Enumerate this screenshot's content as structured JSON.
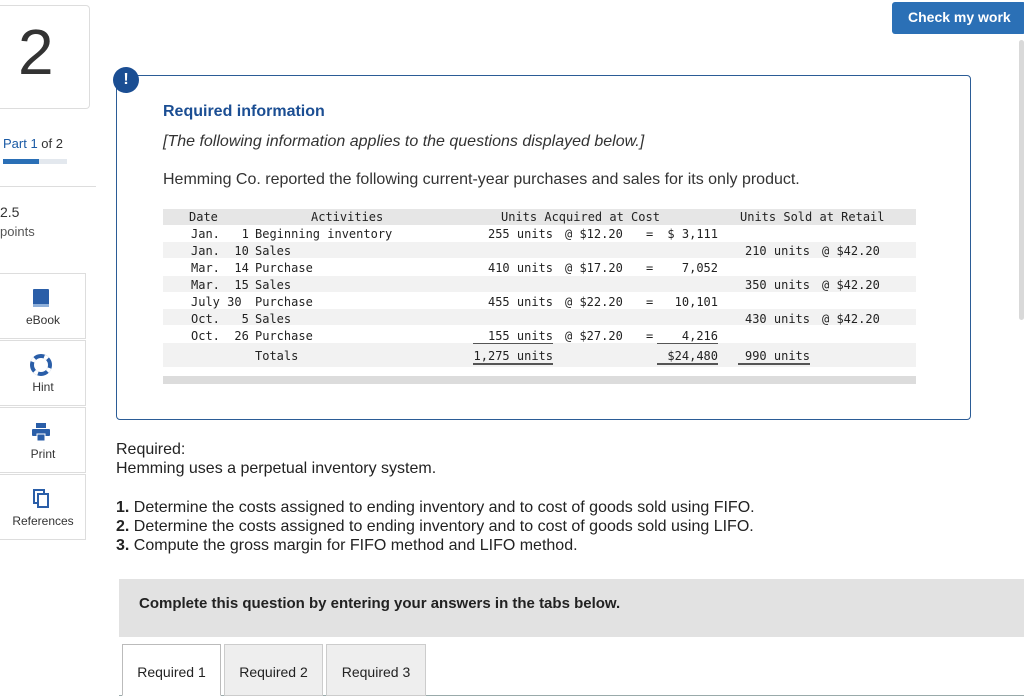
{
  "question": {
    "number": "2",
    "part_current": "Part 1",
    "part_of": " of 2",
    "points_value": "2.5",
    "points_label": "points"
  },
  "tools": [
    {
      "label": "eBook",
      "icon": "book-icon"
    },
    {
      "label": "Hint",
      "icon": "lifebuoy-icon"
    },
    {
      "label": "Print",
      "icon": "printer-icon"
    },
    {
      "label": "References",
      "icon": "documents-icon"
    }
  ],
  "header": {
    "check_label": "Check my work",
    "alert_glyph": "!"
  },
  "info": {
    "title": "Required information",
    "applies": "[The following information applies to the questions displayed below.]",
    "intro": "Hemming Co. reported the following current-year purchases and sales for its only product."
  },
  "table": {
    "headers": {
      "date": "Date",
      "activities": "Activities",
      "acquired": "Units Acquired at Cost",
      "sold": "Units Sold at Retail"
    },
    "rows": [
      {
        "date": "Jan.   1",
        "activity": "Beginning inventory",
        "acq_units": "255 units",
        "acq_cost": "@ $12.20",
        "eq": "=",
        "acq_total": "$ 3,111",
        "sold_units": "",
        "sold_price": ""
      },
      {
        "date": "Jan.  10",
        "activity": "Sales",
        "acq_units": "",
        "acq_cost": "",
        "eq": "",
        "acq_total": "",
        "sold_units": "210 units",
        "sold_price": "@ $42.20"
      },
      {
        "date": "Mar.  14",
        "activity": "Purchase",
        "acq_units": "410 units",
        "acq_cost": "@ $17.20",
        "eq": "=",
        "acq_total": "7,052",
        "sold_units": "",
        "sold_price": ""
      },
      {
        "date": "Mar.  15",
        "activity": "Sales",
        "acq_units": "",
        "acq_cost": "",
        "eq": "",
        "acq_total": "",
        "sold_units": "350 units",
        "sold_price": "@ $42.20"
      },
      {
        "date": "July 30",
        "activity": "Purchase",
        "acq_units": "455 units",
        "acq_cost": "@ $22.20",
        "eq": "=",
        "acq_total": "10,101",
        "sold_units": "",
        "sold_price": ""
      },
      {
        "date": "Oct.   5",
        "activity": "Sales",
        "acq_units": "",
        "acq_cost": "",
        "eq": "",
        "acq_total": "",
        "sold_units": "430 units",
        "sold_price": "@ $42.20"
      },
      {
        "date": "Oct.  26",
        "activity": "Purchase",
        "acq_units": "155 units",
        "acq_cost": "@ $27.20",
        "eq": "=",
        "acq_total": "4,216",
        "sold_units": "",
        "sold_price": ""
      }
    ],
    "totals": {
      "label": "Totals",
      "acq_units": "1,275 units",
      "acq_total": "$24,480",
      "sold_units": "990 units"
    }
  },
  "required": {
    "heading": "Required:",
    "system": "Hemming uses a perpetual inventory system.",
    "items": [
      {
        "num": "1.",
        "text": " Determine the costs assigned to ending inventory and to cost of goods sold using FIFO."
      },
      {
        "num": "2.",
        "text": " Determine the costs assigned to ending inventory and to cost of goods sold using LIFO."
      },
      {
        "num": "3.",
        "text": " Compute the gross margin for FIFO method and LIFO method."
      }
    ]
  },
  "complete_text": "Complete this question by entering your answers in the tabs below.",
  "tabs": [
    "Required 1",
    "Required 2",
    "Required 3"
  ],
  "colors": {
    "brand_blue": "#2b70b6",
    "navy": "#1b4e93"
  }
}
